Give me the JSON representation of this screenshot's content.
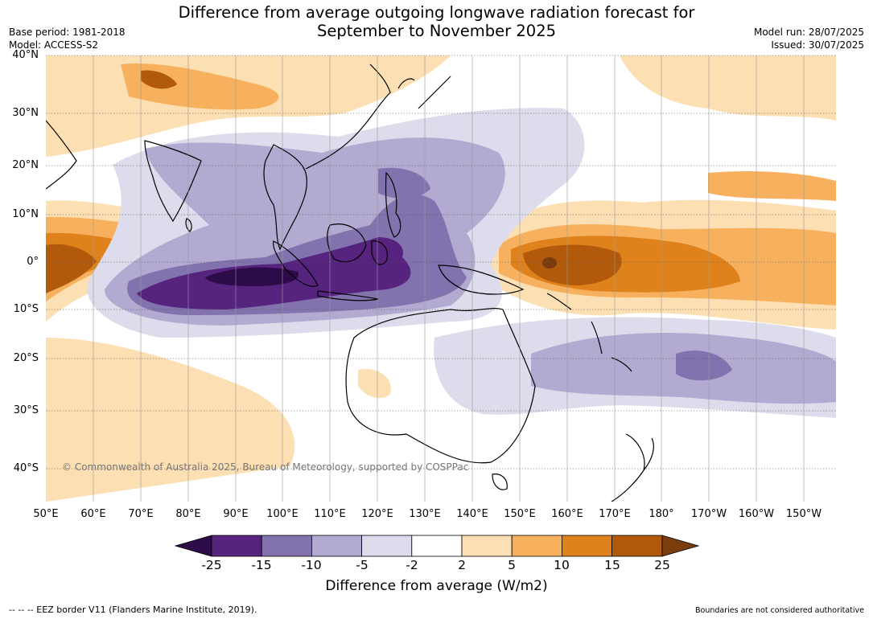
{
  "title_line1": "Difference from average outgoing longwave radiation forecast for",
  "title_line2": "September to November 2025",
  "meta_left": {
    "base_period": "Base period: 1981-2018",
    "model": "Model: ACCESS-S2"
  },
  "meta_right": {
    "model_run": "Model run: 28/07/2025",
    "issued": "Issued: 30/07/2025"
  },
  "lat_labels": [
    "40°N",
    "30°N",
    "20°N",
    "10°N",
    "0°",
    "10°S",
    "20°S",
    "30°S",
    "40°S"
  ],
  "lon_labels": [
    "50°E",
    "60°E",
    "70°E",
    "80°E",
    "90°E",
    "100°E",
    "110°E",
    "120°E",
    "130°E",
    "140°E",
    "150°E",
    "160°E",
    "170°E",
    "180°",
    "170°W",
    "160°W",
    "150°W"
  ],
  "copyright": "© Commonwealth of Australia 2025, Bureau of Meteorology, supported by COSPPac",
  "colorbar": {
    "labels": [
      "-25",
      "-15",
      "-10",
      "-5",
      "-2",
      "2",
      "5",
      "10",
      "15",
      "25"
    ],
    "title": "Difference from average (W/m2)",
    "colors": [
      "#2d0b49",
      "#56237e",
      "#8272ad",
      "#b2aad0",
      "#dcdcec",
      "#ffffff",
      "#fcdfb2",
      "#f7b15e",
      "#e0821c",
      "#b15a0c",
      "#7c3d0e"
    ]
  },
  "footer_left": "--  --  -- EEZ border V11 (Flanders Marine Institute, 2019).",
  "footer_right": "Boundaries are not considered authoritative"
}
